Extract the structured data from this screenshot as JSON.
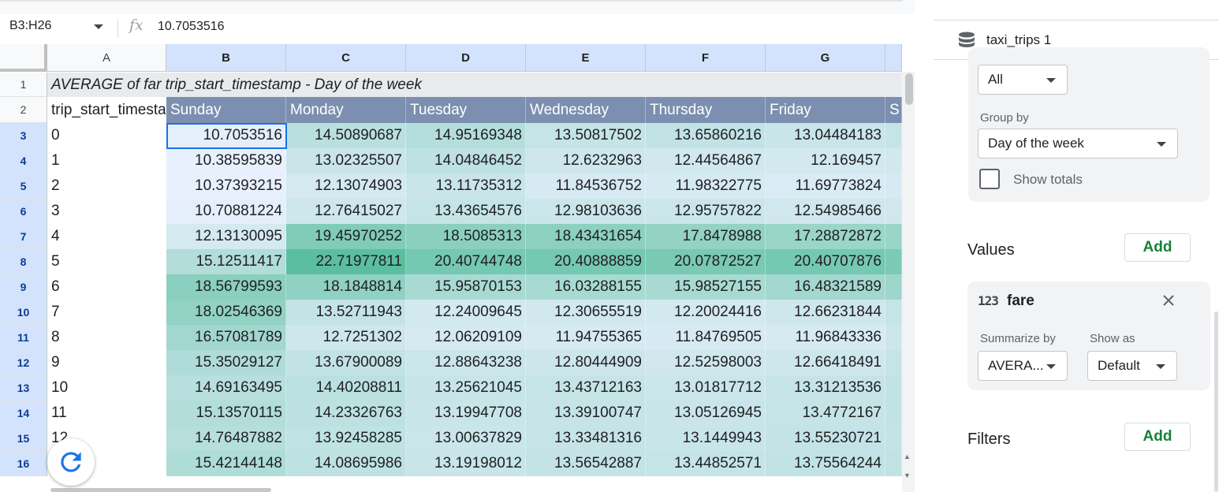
{
  "formula_bar": {
    "name_box": "B3:H26",
    "fx_icon": "fx-icon",
    "formula_value": "10.7053516"
  },
  "grid": {
    "columns": [
      "A",
      "B",
      "C",
      "D",
      "E",
      "F",
      "G"
    ],
    "selected_columns": [
      "B",
      "C",
      "D",
      "E",
      "F",
      "G"
    ],
    "rows": [
      "1",
      "2",
      "3",
      "4",
      "5",
      "6",
      "7",
      "8",
      "9",
      "10",
      "11",
      "12",
      "13",
      "14",
      "15",
      "16"
    ],
    "title": "AVERAGE of far trip_start_timestamp - Day of the week",
    "row_field_header": "trip_start_timesta",
    "day_headers": [
      "Sunday",
      "Monday",
      "Tuesday",
      "Wednesday",
      "Thursday",
      "Friday",
      "S"
    ],
    "data_rows": [
      {
        "label": "0",
        "values": [
          "10.7053516",
          "14.50890687",
          "14.95169348",
          "13.50817502",
          "13.65860216",
          "13.04484183"
        ]
      },
      {
        "label": "1",
        "values": [
          "10.38595839",
          "13.02325507",
          "14.04846452",
          "12.6232963",
          "12.44564867",
          "12.169457"
        ]
      },
      {
        "label": "2",
        "values": [
          "10.37393215",
          "12.13074903",
          "13.11735312",
          "11.84536752",
          "11.98322775",
          "11.69773824"
        ]
      },
      {
        "label": "3",
        "values": [
          "10.70881224",
          "12.76415027",
          "13.43654576",
          "12.98103636",
          "12.95757822",
          "12.54985466"
        ]
      },
      {
        "label": "4",
        "values": [
          "12.13130095",
          "19.45970252",
          "18.5085313",
          "18.43431654",
          "17.8478988",
          "17.28872872"
        ]
      },
      {
        "label": "5",
        "values": [
          "15.12511417",
          "22.71977811",
          "20.40744748",
          "20.40888859",
          "20.07872527",
          "20.40707876"
        ]
      },
      {
        "label": "6",
        "values": [
          "18.56799593",
          "18.1848814",
          "15.95870153",
          "16.03288155",
          "15.98527155",
          "16.48321589"
        ]
      },
      {
        "label": "7",
        "values": [
          "18.02546369",
          "13.52711943",
          "12.24009645",
          "12.30655519",
          "12.20024416",
          "12.66231844"
        ]
      },
      {
        "label": "8",
        "values": [
          "16.57081789",
          "12.7251302",
          "12.06209109",
          "11.94755365",
          "11.84769505",
          "11.96843336"
        ]
      },
      {
        "label": "9",
        "values": [
          "15.35029127",
          "13.67900089",
          "12.88643238",
          "12.80444909",
          "12.52598003",
          "12.66418491"
        ]
      },
      {
        "label": "10",
        "values": [
          "14.69163495",
          "14.40208811",
          "13.25621045",
          "13.43712163",
          "13.01817712",
          "13.31213536"
        ]
      },
      {
        "label": "11",
        "values": [
          "15.13570115",
          "14.23326763",
          "13.19947708",
          "13.39100747",
          "13.05126945",
          "13.4772167"
        ]
      },
      {
        "label": "12",
        "values": [
          "14.76487882",
          "13.92458285",
          "13.00637829",
          "13.33481316",
          "13.1449943",
          "13.55230721"
        ]
      },
      {
        "label": "13",
        "values": [
          "15.42144148",
          "14.08695986",
          "13.19198012",
          "13.56542887",
          "13.44852571",
          "13.75564244"
        ]
      }
    ],
    "refresh_icon": "refresh-icon"
  },
  "colors": {
    "scale_low": "#e8f0fe",
    "scale_high": "#5bbf9f",
    "header_row": "#7c8fb0",
    "selection": "#1a73e8",
    "add_button_text": "#188038"
  },
  "panel": {
    "source_icon": "database-icon",
    "source_name": "taxi_trips 1",
    "order_value": "All",
    "group_by_label": "Group by",
    "group_by_value": "Day of the week",
    "show_totals_label": "Show totals",
    "show_totals_checked": false,
    "values_title": "Values",
    "values_add": "Add",
    "value_field": {
      "type_icon": "123",
      "name": "fare",
      "summarize_label": "Summarize by",
      "summarize_value": "AVERA...",
      "show_as_label": "Show as",
      "show_as_value": "Default"
    },
    "filters_title": "Filters",
    "filters_add": "Add"
  }
}
